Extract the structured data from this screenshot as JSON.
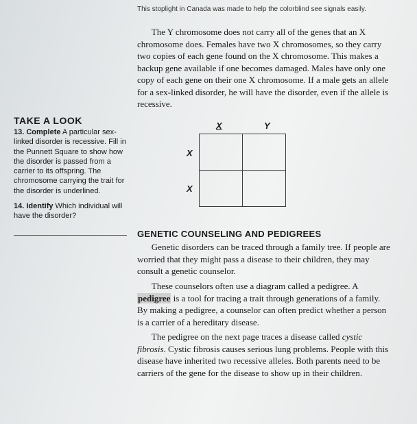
{
  "caption": "This stoplight in Canada was made to help the colorblind see signals easily.",
  "paragraph1": "The Y chromosome does not carry all of the genes that an X chromosome does. Females have two X chromosomes, so they carry two copies of each gene found on the X chromosome. This makes a backup gene available if one becomes damaged. Males have only one copy of each gene on their one X chromosome. If a male gets an allele for a sex-linked disorder, he will have the disorder, even if the allele is recessive.",
  "sidebar": {
    "heading": "TAKE A LOOK",
    "q13_num": "13.",
    "q13_verb": "Complete",
    "q13_text": " A particular sex-linked disorder is recessive. Fill in the Punnett Square to show how the disorder is passed from a carrier to its offspring. The chromosome carrying the trait for the disorder is underlined.",
    "q14_num": "14.",
    "q14_verb": "Identify",
    "q14_text": " Which individual will have the disorder?"
  },
  "punnett": {
    "top_left": "X",
    "top_right": "Y",
    "left_top": "X",
    "left_bottom": "X"
  },
  "section2_heading": "GENETIC COUNSELING AND PEDIGREES",
  "paragraph2": "Genetic disorders can be traced through a family tree. If people are worried that they might pass a disease to their children, they may consult a genetic counselor.",
  "paragraph3_a": "These counselors often use a diagram called a pedigree. A ",
  "paragraph3_term": "pedigree",
  "paragraph3_b": " is a tool for tracing a trait through generations of a family. By making a pedigree, a counselor can often predict whether a person is a carrier of a hereditary disease.",
  "paragraph4_a": "The pedigree on the next page traces a disease called ",
  "paragraph4_it": "cystic fibrosis",
  "paragraph4_b": ". Cystic fibrosis causes serious lung problems. People with this disease have inherited two recessive alleles. Both parents need to be carriers of the gene for the disease to show up in their children."
}
